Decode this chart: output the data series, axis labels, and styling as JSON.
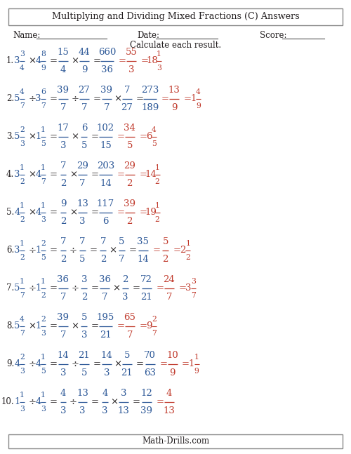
{
  "title": "Multiplying and Dividing Mixed Fractions (C) Answers",
  "footer": "Math-Drills.com",
  "black_color": "#231f20",
  "blue_color": "#2b5797",
  "red_color": "#c0392b",
  "bg_color": "#f5f5f0",
  "problems": [
    {
      "num": "1",
      "mixed1_w": "3",
      "mixed1_n": "3",
      "mixed1_d": "4",
      "op": "×",
      "mixed2_w": "4",
      "mixed2_n": "8",
      "mixed2_d": "9",
      "imp1_n": "15",
      "imp1_d": "4",
      "op2": "×",
      "imp2_n": "44",
      "imp2_d": "9",
      "div_extra": false,
      "res1_n": "660",
      "res1_d": "36",
      "res2_n": "55",
      "res2_d": "3",
      "fin_w": "18",
      "fin_n": "1",
      "fin_d": "3"
    },
    {
      "num": "2",
      "mixed1_w": "5",
      "mixed1_n": "4",
      "mixed1_d": "7",
      "op": "÷",
      "mixed2_w": "3",
      "mixed2_n": "6",
      "mixed2_d": "7",
      "imp1_n": "39",
      "imp1_d": "7",
      "op2": "÷",
      "imp2_n": "27",
      "imp2_d": "7",
      "div_extra": true,
      "imp3_n": "39",
      "imp3_d": "7",
      "op3": "×",
      "imp4_n": "7",
      "imp4_d": "27",
      "res1_n": "273",
      "res1_d": "189",
      "res2_n": "13",
      "res2_d": "9",
      "fin_w": "1",
      "fin_n": "4",
      "fin_d": "9"
    },
    {
      "num": "3",
      "mixed1_w": "5",
      "mixed1_n": "2",
      "mixed1_d": "3",
      "op": "×",
      "mixed2_w": "1",
      "mixed2_n": "1",
      "mixed2_d": "5",
      "imp1_n": "17",
      "imp1_d": "3",
      "op2": "×",
      "imp2_n": "6",
      "imp2_d": "5",
      "div_extra": false,
      "res1_n": "102",
      "res1_d": "15",
      "res2_n": "34",
      "res2_d": "5",
      "fin_w": "6",
      "fin_n": "4",
      "fin_d": "5"
    },
    {
      "num": "4",
      "mixed1_w": "3",
      "mixed1_n": "1",
      "mixed1_d": "2",
      "op": "×",
      "mixed2_w": "4",
      "mixed2_n": "1",
      "mixed2_d": "7",
      "imp1_n": "7",
      "imp1_d": "2",
      "op2": "×",
      "imp2_n": "29",
      "imp2_d": "7",
      "div_extra": false,
      "res1_n": "203",
      "res1_d": "14",
      "res2_n": "29",
      "res2_d": "2",
      "fin_w": "14",
      "fin_n": "1",
      "fin_d": "2"
    },
    {
      "num": "5",
      "mixed1_w": "4",
      "mixed1_n": "1",
      "mixed1_d": "2",
      "op": "×",
      "mixed2_w": "4",
      "mixed2_n": "1",
      "mixed2_d": "3",
      "imp1_n": "9",
      "imp1_d": "2",
      "op2": "×",
      "imp2_n": "13",
      "imp2_d": "3",
      "div_extra": false,
      "res1_n": "117",
      "res1_d": "6",
      "res2_n": "39",
      "res2_d": "2",
      "fin_w": "19",
      "fin_n": "1",
      "fin_d": "2"
    },
    {
      "num": "6",
      "mixed1_w": "3",
      "mixed1_n": "1",
      "mixed1_d": "2",
      "op": "÷",
      "mixed2_w": "1",
      "mixed2_n": "2",
      "mixed2_d": "5",
      "imp1_n": "7",
      "imp1_d": "2",
      "op2": "÷",
      "imp2_n": "7",
      "imp2_d": "5",
      "div_extra": true,
      "imp3_n": "7",
      "imp3_d": "2",
      "op3": "×",
      "imp4_n": "5",
      "imp4_d": "7",
      "res1_n": "35",
      "res1_d": "14",
      "res2_n": "5",
      "res2_d": "2",
      "fin_w": "2",
      "fin_n": "1",
      "fin_d": "2"
    },
    {
      "num": "7",
      "mixed1_w": "5",
      "mixed1_n": "1",
      "mixed1_d": "7",
      "op": "÷",
      "mixed2_w": "1",
      "mixed2_n": "1",
      "mixed2_d": "2",
      "imp1_n": "36",
      "imp1_d": "7",
      "op2": "÷",
      "imp2_n": "3",
      "imp2_d": "2",
      "div_extra": true,
      "imp3_n": "36",
      "imp3_d": "7",
      "op3": "×",
      "imp4_n": "2",
      "imp4_d": "3",
      "res1_n": "72",
      "res1_d": "21",
      "res2_n": "24",
      "res2_d": "7",
      "fin_w": "3",
      "fin_n": "3",
      "fin_d": "7"
    },
    {
      "num": "8",
      "mixed1_w": "5",
      "mixed1_n": "4",
      "mixed1_d": "7",
      "op": "×",
      "mixed2_w": "1",
      "mixed2_n": "2",
      "mixed2_d": "3",
      "imp1_n": "39",
      "imp1_d": "7",
      "op2": "×",
      "imp2_n": "5",
      "imp2_d": "3",
      "div_extra": false,
      "res1_n": "195",
      "res1_d": "21",
      "res2_n": "65",
      "res2_d": "7",
      "fin_w": "9",
      "fin_n": "2",
      "fin_d": "7"
    },
    {
      "num": "9",
      "mixed1_w": "4",
      "mixed1_n": "2",
      "mixed1_d": "3",
      "op": "÷",
      "mixed2_w": "4",
      "mixed2_n": "1",
      "mixed2_d": "5",
      "imp1_n": "14",
      "imp1_d": "3",
      "op2": "÷",
      "imp2_n": "21",
      "imp2_d": "5",
      "div_extra": true,
      "imp3_n": "14",
      "imp3_d": "3",
      "op3": "×",
      "imp4_n": "5",
      "imp4_d": "21",
      "res1_n": "70",
      "res1_d": "63",
      "res2_n": "10",
      "res2_d": "9",
      "fin_w": "1",
      "fin_n": "1",
      "fin_d": "9"
    },
    {
      "num": "10",
      "mixed1_w": "1",
      "mixed1_n": "1",
      "mixed1_d": "3",
      "op": "÷",
      "mixed2_w": "4",
      "mixed2_n": "1",
      "mixed2_d": "3",
      "imp1_n": "4",
      "imp1_d": "3",
      "op2": "÷",
      "imp2_n": "13",
      "imp2_d": "3",
      "div_extra": true,
      "imp3_n": "4",
      "imp3_d": "3",
      "op3": "×",
      "imp4_n": "3",
      "imp4_d": "13",
      "res1_n": "12",
      "res1_d": "39",
      "res2_n": "4",
      "res2_d": "13",
      "fin_w": "",
      "fin_n": "",
      "fin_d": ""
    }
  ]
}
